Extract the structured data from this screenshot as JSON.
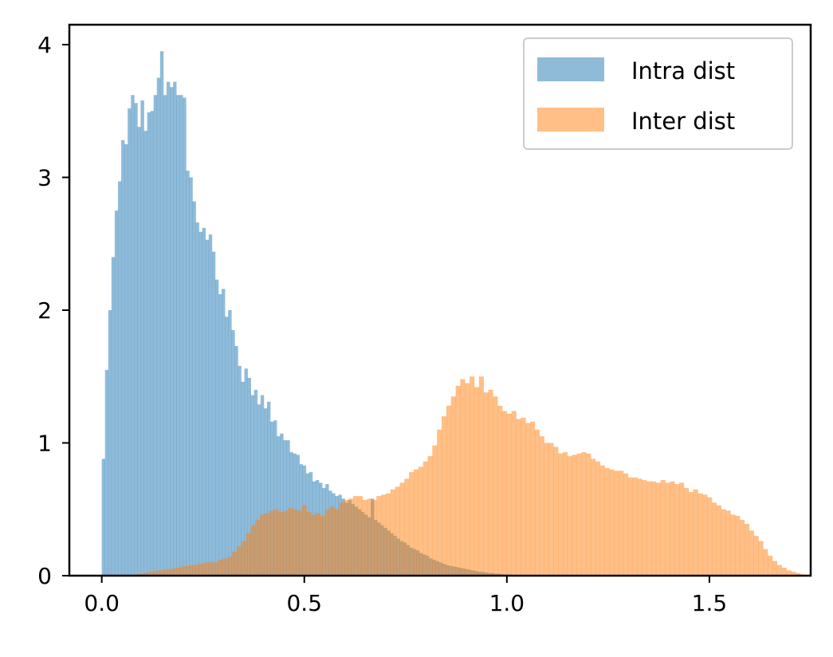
{
  "chart_data": {
    "type": "bar",
    "title": "",
    "xlabel": "",
    "ylabel": "",
    "xlim": [
      -0.08,
      1.75
    ],
    "ylim": [
      0,
      4.15
    ],
    "xticks": [
      "0.0",
      "0.5",
      "1.0",
      "1.5"
    ],
    "yticks": [
      "0",
      "1",
      "2",
      "3",
      "4"
    ],
    "grid": false,
    "legend_position": "top-right",
    "series": [
      {
        "name": "Intra dist",
        "color": "#1f77b4",
        "opacity": 0.5,
        "bin_start": 0.0,
        "bin_width": 0.008,
        "values": [
          0.88,
          1.55,
          2.0,
          2.4,
          2.75,
          2.97,
          3.28,
          3.25,
          3.52,
          3.62,
          3.56,
          3.38,
          3.58,
          3.35,
          3.49,
          3.5,
          3.62,
          3.75,
          3.95,
          3.62,
          3.72,
          3.68,
          3.72,
          3.62,
          3.62,
          3.6,
          3.05,
          3.0,
          2.82,
          2.66,
          2.59,
          2.62,
          2.53,
          2.57,
          2.44,
          2.23,
          2.12,
          2.16,
          1.95,
          2.0,
          1.85,
          1.73,
          1.58,
          1.46,
          1.56,
          1.49,
          1.36,
          1.4,
          1.29,
          1.36,
          1.26,
          1.31,
          1.16,
          1.17,
          1.05,
          1.07,
          1.02,
          1.02,
          0.93,
          0.92,
          0.91,
          0.84,
          0.83,
          0.77,
          0.78,
          0.71,
          0.72,
          0.7,
          0.66,
          0.69,
          0.64,
          0.62,
          0.6,
          0.61,
          0.58,
          0.55,
          0.57,
          0.54,
          0.52,
          0.5,
          0.48,
          0.46,
          0.44,
          0.58,
          0.42,
          0.4,
          0.38,
          0.36,
          0.34,
          0.32,
          0.3,
          0.28,
          0.26,
          0.25,
          0.23,
          0.21,
          0.2,
          0.19,
          0.17,
          0.16,
          0.15,
          0.13,
          0.12,
          0.11,
          0.1,
          0.09,
          0.08,
          0.075,
          0.07,
          0.065,
          0.06,
          0.055,
          0.05,
          0.045,
          0.04,
          0.035,
          0.03,
          0.03,
          0.025,
          0.02,
          0.02,
          0.015,
          0.015,
          0.01,
          0.01,
          0.008,
          0.006,
          0.005
        ]
      },
      {
        "name": "Inter dist",
        "color": "#ff7f0e",
        "opacity": 0.5,
        "bin_start": 0.08,
        "bin_width": 0.0115,
        "values": [
          0.01,
          0.015,
          0.02,
          0.03,
          0.035,
          0.04,
          0.045,
          0.05,
          0.055,
          0.06,
          0.07,
          0.075,
          0.08,
          0.085,
          0.09,
          0.1,
          0.1,
          0.1,
          0.12,
          0.13,
          0.14,
          0.18,
          0.22,
          0.26,
          0.32,
          0.38,
          0.42,
          0.46,
          0.47,
          0.49,
          0.5,
          0.48,
          0.49,
          0.51,
          0.5,
          0.49,
          0.53,
          0.48,
          0.46,
          0.47,
          0.45,
          0.5,
          0.52,
          0.5,
          0.55,
          0.57,
          0.58,
          0.6,
          0.6,
          0.57,
          0.58,
          0.57,
          0.6,
          0.61,
          0.62,
          0.65,
          0.67,
          0.7,
          0.73,
          0.78,
          0.8,
          0.82,
          0.86,
          0.9,
          0.98,
          1.1,
          1.2,
          1.28,
          1.35,
          1.43,
          1.48,
          1.45,
          1.5,
          1.42,
          1.5,
          1.38,
          1.4,
          1.35,
          1.28,
          1.24,
          1.22,
          1.24,
          1.18,
          1.19,
          1.15,
          1.16,
          1.1,
          1.05,
          1.0,
          1.0,
          0.97,
          0.92,
          0.93,
          0.9,
          0.91,
          0.92,
          0.93,
          0.92,
          0.88,
          0.86,
          0.83,
          0.81,
          0.8,
          0.79,
          0.79,
          0.77,
          0.74,
          0.74,
          0.73,
          0.72,
          0.71,
          0.71,
          0.7,
          0.72,
          0.7,
          0.71,
          0.69,
          0.7,
          0.66,
          0.63,
          0.65,
          0.62,
          0.61,
          0.59,
          0.55,
          0.53,
          0.5,
          0.49,
          0.46,
          0.45,
          0.42,
          0.39,
          0.34,
          0.3,
          0.26,
          0.2,
          0.15,
          0.11,
          0.08,
          0.06,
          0.04,
          0.03,
          0.02,
          0.01
        ]
      }
    ]
  }
}
